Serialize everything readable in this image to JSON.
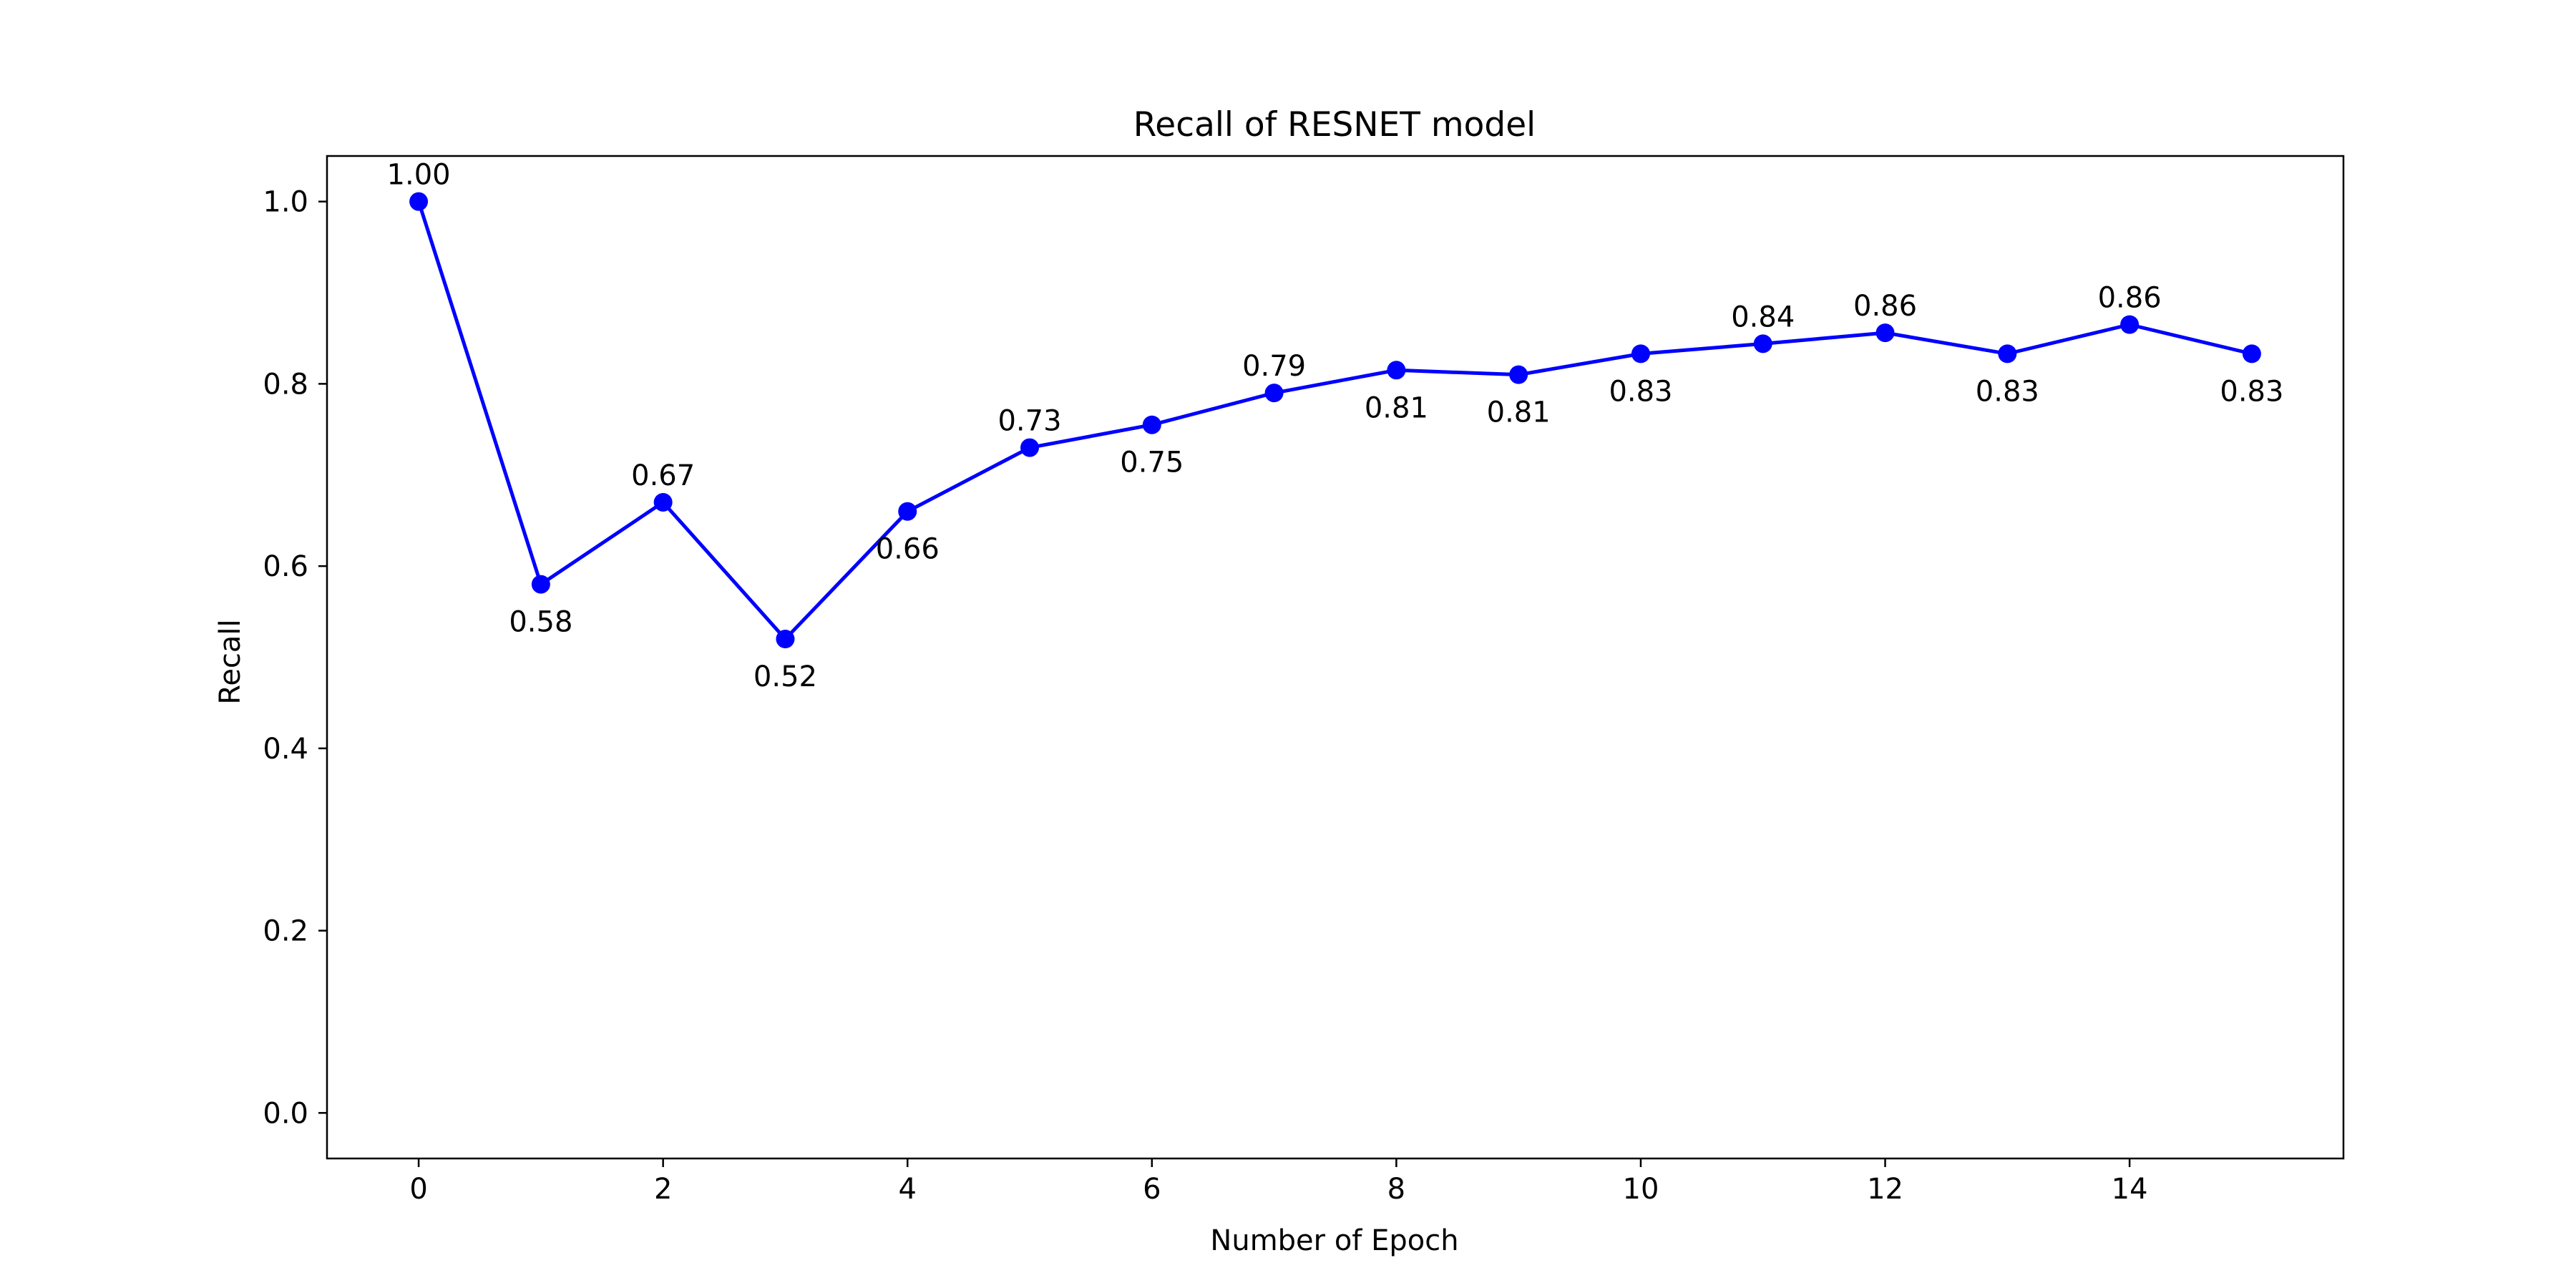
{
  "chart_data": {
    "type": "line",
    "title": "Recall of RESNET model",
    "xlabel": "Number of Epoch",
    "ylabel": "Recall",
    "x": [
      0,
      1,
      2,
      3,
      4,
      5,
      6,
      7,
      8,
      9,
      10,
      11,
      12,
      13,
      14,
      15
    ],
    "series": [
      {
        "values": [
          1.0,
          0.58,
          0.67,
          0.52,
          0.66,
          0.73,
          0.755,
          0.79,
          0.815,
          0.81,
          0.833,
          0.844,
          0.856,
          0.833,
          0.865,
          0.833
        ],
        "labels": [
          "1.00",
          "0.58",
          "0.67",
          "0.52",
          "0.66",
          "0.73",
          "0.75",
          "0.79",
          "0.81",
          "0.81",
          "0.83",
          "0.84",
          "0.86",
          "0.83",
          "0.86",
          "0.83"
        ],
        "label_position": [
          "above",
          "below",
          "above",
          "below",
          "below",
          "above",
          "below",
          "above",
          "below",
          "below",
          "below",
          "above",
          "above",
          "below",
          "above",
          "below"
        ],
        "color": "#0000ff",
        "marker": "circle"
      }
    ],
    "xlim": [
      -0.75,
      15.75
    ],
    "ylim": [
      -0.05,
      1.05
    ],
    "xticks": [
      0,
      2,
      4,
      6,
      8,
      10,
      12,
      14
    ],
    "xtick_labels": [
      "0",
      "2",
      "4",
      "6",
      "8",
      "10",
      "12",
      "14"
    ],
    "yticks": [
      0.0,
      0.2,
      0.4,
      0.6,
      0.8,
      1.0
    ],
    "ytick_labels": [
      "0.0",
      "0.2",
      "0.4",
      "0.6",
      "0.8",
      "1.0"
    ],
    "grid": false,
    "legend": "none"
  }
}
